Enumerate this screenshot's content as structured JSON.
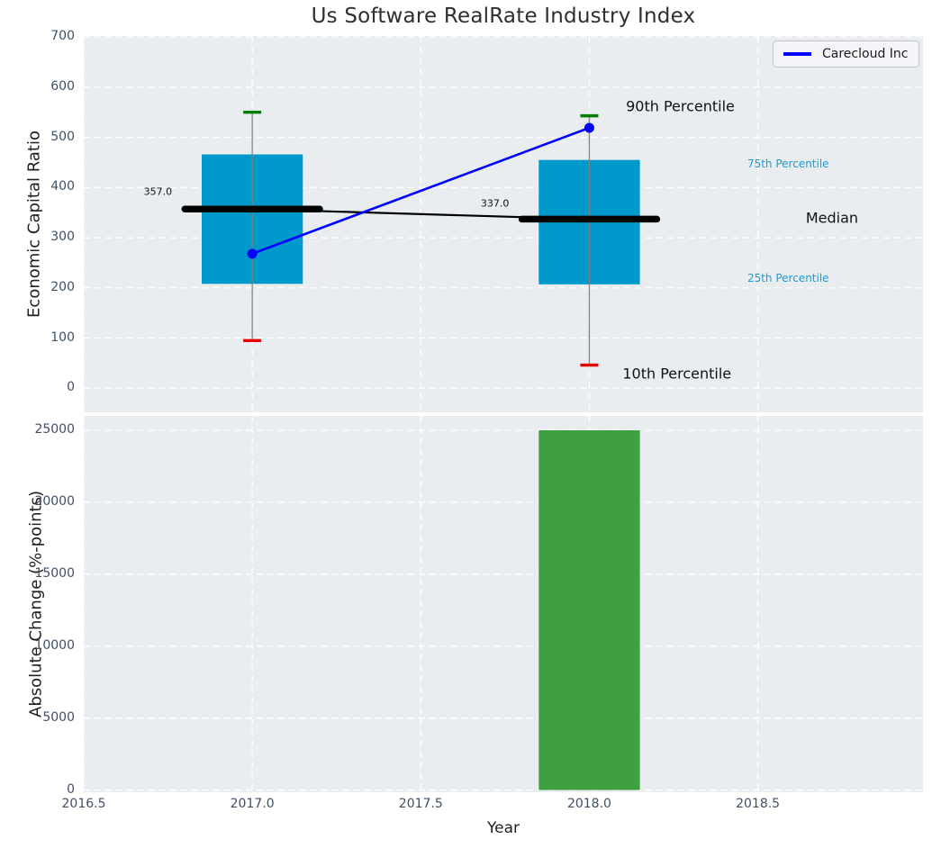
{
  "chart_data": {
    "type": "box-percentile-with-line-and-bar",
    "title": "Us Software RealRate Industry Index",
    "top": {
      "ylabel": "Economic Capital Ratio",
      "ylim": [
        -48,
        702
      ],
      "yticks": [
        0,
        100,
        200,
        300,
        400,
        500,
        600,
        700
      ],
      "xlim": [
        2016.5,
        2018.99
      ],
      "xticks": [
        2016.5,
        2017.0,
        2017.5,
        2018.0,
        2018.5
      ],
      "grid": "white dashed, both axes",
      "box_width": 0.3,
      "median_span": 0.4,
      "boxes": [
        {
          "x": 2017.0,
          "p10": 95,
          "p25": 208,
          "median": 357,
          "p75": 466,
          "p90": 550,
          "median_label": "357.0"
        },
        {
          "x": 2018.0,
          "p10": 46,
          "p25": 207,
          "median": 337,
          "p75": 455,
          "p90": 543,
          "median_label": "337.0"
        }
      ],
      "median_line": {
        "x": [
          2017.0,
          2018.0
        ],
        "y": [
          357,
          337
        ]
      },
      "series": {
        "name": "Carecloud Inc",
        "x": [
          2017.0,
          2018.0
        ],
        "y": [
          268,
          519
        ]
      },
      "legend_position": "upper right",
      "annotations": [
        {
          "text": "357.0",
          "x": 2016.72,
          "y": 391,
          "style": "value"
        },
        {
          "text": "337.0",
          "x": 2017.72,
          "y": 368,
          "style": "value"
        },
        {
          "text": "90th Percentile",
          "x": 2018.27,
          "y": 562,
          "style": "large"
        },
        {
          "text": "10th Percentile",
          "x": 2018.26,
          "y": 29,
          "style": "large"
        },
        {
          "text": "75th Percentile",
          "x": 2018.59,
          "y": 447,
          "style": "percentile"
        },
        {
          "text": "Median",
          "x": 2018.72,
          "y": 340,
          "style": "large"
        },
        {
          "text": "25th Percentile",
          "x": 2018.59,
          "y": 219,
          "style": "percentile"
        }
      ]
    },
    "bottom": {
      "ylabel": "Absolute Change (%-points)",
      "xlabel": "Year",
      "ylim": [
        -150,
        26000
      ],
      "yticks": [
        0,
        5000,
        10000,
        15000,
        20000,
        25000
      ],
      "xtick_labels": [
        "2016.5",
        "2017.0",
        "2017.5",
        "2018.0",
        "2018.5"
      ],
      "bar_width": 0.3,
      "bars": [
        {
          "x": 2018.0,
          "value": 25000
        }
      ]
    },
    "colors": {
      "box": "#0099cc",
      "bar": "#3fa042",
      "p90_cap": "#008000",
      "p10_cap": "#e60000",
      "series": "#0000ff",
      "median": "#000000",
      "whisker": "#808080",
      "axes_bg": "#e9edef",
      "grid": "#ffffff",
      "tick_label": "#3e5066",
      "percentile_label": "#1a9cd4"
    }
  }
}
